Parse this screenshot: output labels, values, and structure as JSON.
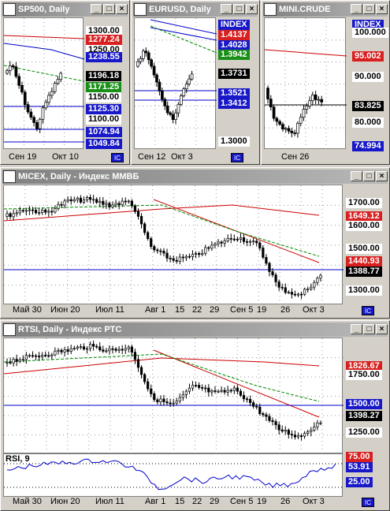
{
  "windows": [
    {
      "title": "SP500, Daily",
      "tags": [
        {
          "t": "1300.00",
          "c": "bt"
        },
        {
          "t": "1277.24",
          "c": "tr"
        },
        {
          "t": "1250.00",
          "c": "bt"
        },
        {
          "t": "1238.55",
          "c": "tb"
        },
        {
          "t": "1196.18",
          "c": "tk"
        },
        {
          "t": "1171.25",
          "c": "tg"
        },
        {
          "t": "1150.00",
          "c": "bt"
        },
        {
          "t": "1125.30",
          "c": "tb"
        },
        {
          "t": "1100.00",
          "c": "bt"
        },
        {
          "t": "1074.94",
          "c": "tb"
        },
        {
          "t": "1049.84",
          "c": "tb"
        }
      ],
      "dates": [
        "Сен 19",
        "Окт 10"
      ]
    },
    {
      "title": "EURUSD, Daily",
      "tags": [
        {
          "t": "INDEX",
          "c": "tb"
        },
        {
          "t": "1.4137",
          "c": "tr"
        },
        {
          "t": "1.4028",
          "c": "tb"
        },
        {
          "t": "1.3942",
          "c": "tg"
        },
        {
          "t": "1.3731",
          "c": "tk"
        },
        {
          "t": "1.3521",
          "c": "tb"
        },
        {
          "t": "1.3412",
          "c": "tb"
        },
        {
          "t": "1.3000",
          "c": "bt"
        }
      ],
      "dates": [
        "Сен 12",
        "Окт 3"
      ]
    },
    {
      "title": "MINI.CRUDE",
      "tags": [
        {
          "t": "INDEX",
          "c": "tb"
        },
        {
          "t": "100.000",
          "c": "bt"
        },
        {
          "t": "95.002",
          "c": "tr"
        },
        {
          "t": "90.000",
          "c": "bt"
        },
        {
          "t": "83.825",
          "c": "tk"
        },
        {
          "t": "80.000",
          "c": "bt"
        },
        {
          "t": "74.994",
          "c": "tb"
        }
      ],
      "dates": [
        "Сен 26"
      ]
    },
    {
      "title": "MICEX, Daily - Индекс ММВБ",
      "tags": [
        {
          "t": "1700.00",
          "c": "bt"
        },
        {
          "t": "1649.12",
          "c": "tr"
        },
        {
          "t": "1600.00",
          "c": "bt"
        },
        {
          "t": "1500.00",
          "c": "bt"
        },
        {
          "t": "1440.93",
          "c": "tr"
        },
        {
          "t": "1388.77",
          "c": "tk"
        },
        {
          "t": "1300.00",
          "c": "bt"
        }
      ],
      "dates": [
        "Май 30",
        "Июн 20",
        "Июл 11",
        "Авг 1",
        "15",
        "22",
        "29",
        "Сен 5",
        "19",
        "26",
        "Окт 3"
      ]
    },
    {
      "title": "RTSI, Daily - Индекс РТС",
      "tags": [
        {
          "t": "1826.67",
          "c": "tr"
        },
        {
          "t": "1750.00",
          "c": "bt"
        },
        {
          "t": "1500.00",
          "c": "tb"
        },
        {
          "t": "1398.27",
          "c": "tk"
        },
        {
          "t": "1250.00",
          "c": "bt"
        }
      ],
      "rsi": {
        "label": "RSI, 9",
        "tags": [
          {
            "t": "75.00",
            "c": "tr"
          },
          {
            "t": "53.91",
            "c": "tb"
          },
          {
            "t": "25.00",
            "c": "tb"
          }
        ]
      },
      "dates": [
        "Май 30",
        "Июн 20",
        "Июл 11",
        "Авг 1",
        "15",
        "22",
        "29",
        "Сен 5",
        "19",
        "26",
        "Окт 3"
      ]
    }
  ],
  "buttons": {
    "min": "_",
    "max": "□",
    "close": "×"
  },
  "icon": "IC"
}
